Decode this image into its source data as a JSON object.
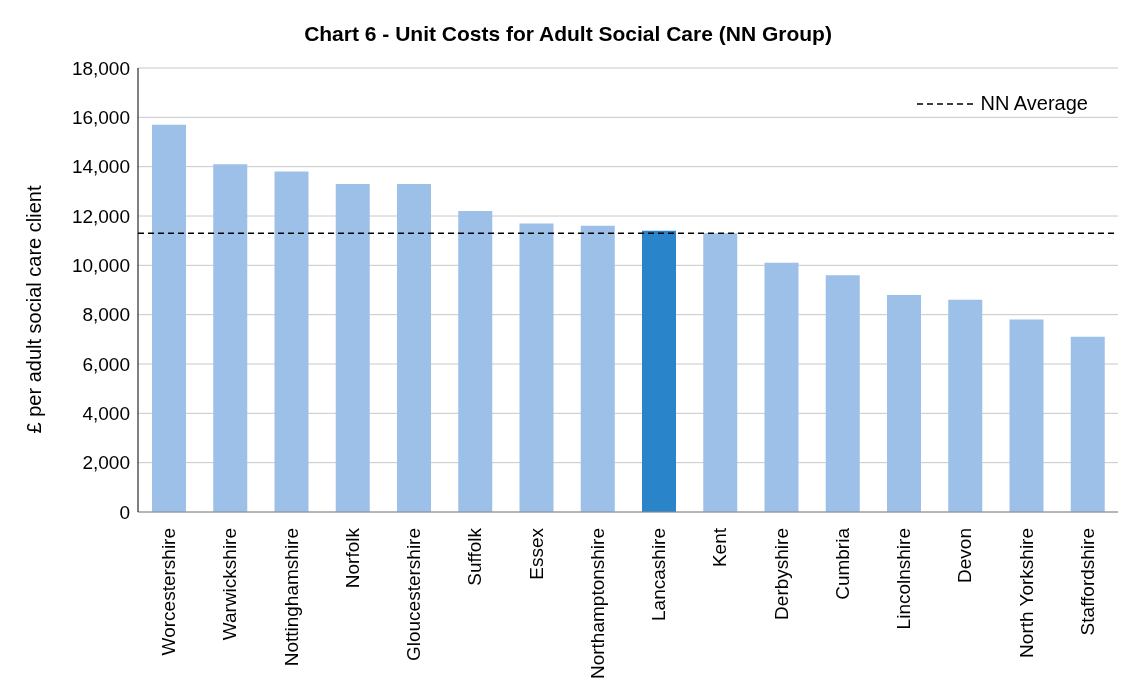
{
  "chart_data": {
    "type": "bar",
    "title": "Chart 6 - Unit Costs for Adult Social Care (NN Group)",
    "ylabel": "£ per adult social care client",
    "categories": [
      "Worcestershire",
      "Warwickshire",
      "Nottinghamshire",
      "Norfolk",
      "Gloucestershire",
      "Suffolk",
      "Essex",
      "Northamptonshire",
      "Lancashire",
      "Kent",
      "Derbyshire",
      "Cumbria",
      "Lincolnshire",
      "Devon",
      "North Yorkshire",
      "Staffordshire"
    ],
    "values": [
      15700,
      14100,
      13800,
      13300,
      13300,
      12200,
      11700,
      11600,
      11400,
      11300,
      10100,
      9600,
      8800,
      8600,
      7800,
      7100
    ],
    "colors": [
      "#9dc0e8",
      "#9dc0e8",
      "#9dc0e8",
      "#9dc0e8",
      "#9dc0e8",
      "#9dc0e8",
      "#9dc0e8",
      "#9dc0e8",
      "#2a84c9",
      "#9dc0e8",
      "#9dc0e8",
      "#9dc0e8",
      "#9dc0e8",
      "#9dc0e8",
      "#9dc0e8",
      "#9dc0e8"
    ],
    "ylim": [
      0,
      18000
    ],
    "yticks": [
      0,
      {
        "value": 2000,
        "label": "2,000"
      },
      {
        "value": 4000,
        "label": "4,000"
      },
      {
        "value": 6000,
        "label": "6,000"
      },
      {
        "value": 8000,
        "label": "8,000"
      },
      {
        "value": 10000,
        "label": "10,000"
      },
      {
        "value": 12000,
        "label": "12,000"
      },
      {
        "value": 14000,
        "label": "14,000"
      },
      {
        "value": 16000,
        "label": "16,000"
      },
      {
        "value": 18000,
        "label": "18,000"
      }
    ],
    "grid": "y",
    "legend": "top right",
    "ref_lines": [
      {
        "axis": "y",
        "value": 11300,
        "label": "NN Average",
        "color": "#000000",
        "line_style": "dashed"
      }
    ]
  }
}
